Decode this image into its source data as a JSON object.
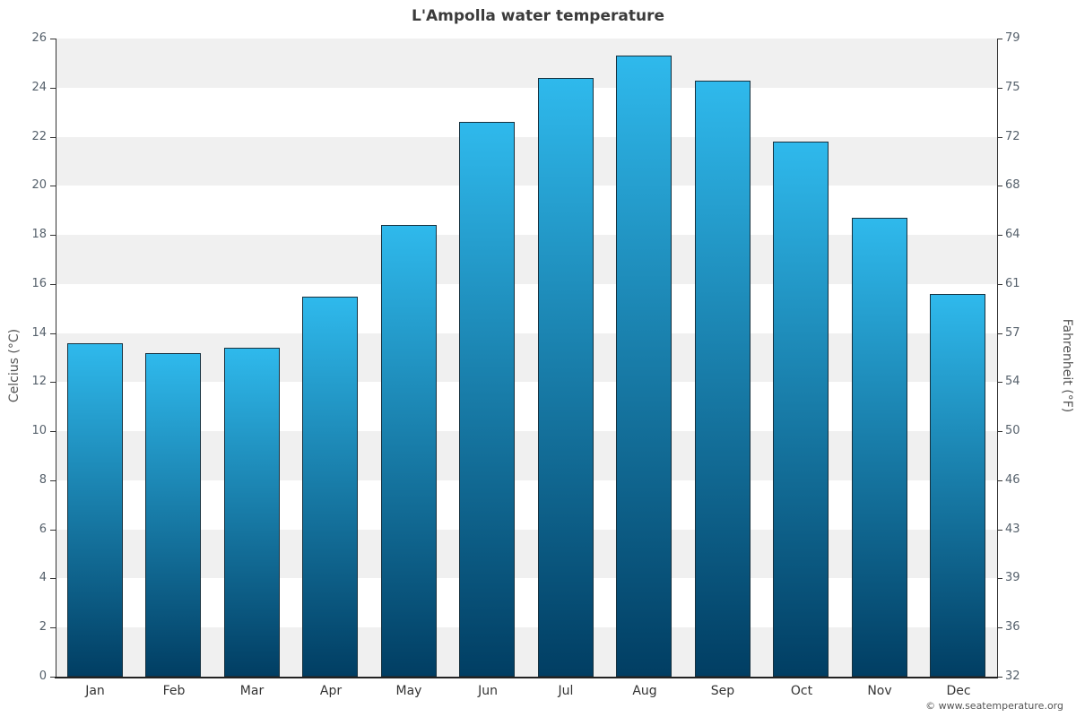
{
  "title": "L'Ampolla water temperature",
  "copyright": "© www.seatemperature.org",
  "chart_data": {
    "type": "bar",
    "title": "L'Ampolla water temperature",
    "categories": [
      "Jan",
      "Feb",
      "Mar",
      "Apr",
      "May",
      "Jun",
      "Jul",
      "Aug",
      "Sep",
      "Oct",
      "Nov",
      "Dec"
    ],
    "values": [
      13.6,
      13.2,
      13.4,
      15.5,
      18.4,
      22.6,
      24.4,
      25.3,
      24.3,
      21.8,
      18.7,
      15.6
    ],
    "ylabel_left": "Celcius (°C)",
    "ylabel_right": "Fahrenheit (°F)",
    "ylim": [
      0,
      26
    ],
    "yticks_celsius": [
      0,
      2,
      4,
      6,
      8,
      10,
      12,
      14,
      16,
      18,
      20,
      22,
      24,
      26
    ],
    "yticks_fahrenheit": [
      32,
      36,
      39,
      43,
      46,
      50,
      54,
      57,
      61,
      64,
      68,
      72,
      75,
      79
    ],
    "grid": "alternating-bands",
    "legend": "none",
    "colors": {
      "band": "#f0f0f0",
      "bar_top": "#2fb9ec",
      "bar_bottom": "#013e63",
      "bar_border": "#16313f",
      "axis": "#333333",
      "tick_text": "#55606b",
      "month_text": "#333333",
      "title_text": "#3b3b3b"
    }
  }
}
